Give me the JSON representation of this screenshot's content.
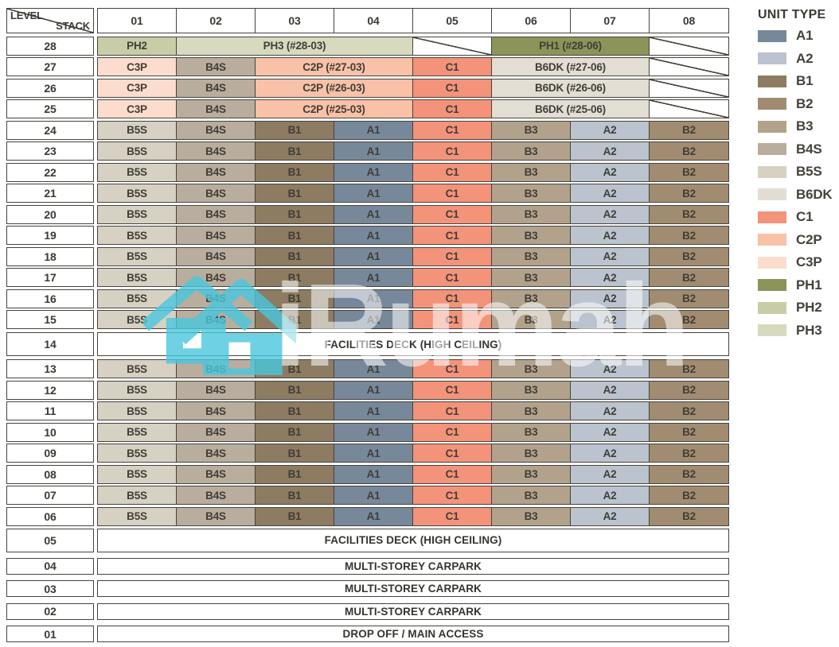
{
  "header": {
    "level_label": "LEVEL",
    "stack_label": "STACK",
    "stacks": [
      "01",
      "02",
      "03",
      "04",
      "05",
      "06",
      "07",
      "08"
    ]
  },
  "legend": {
    "title": "UNIT TYPE",
    "items": [
      "A1",
      "A2",
      "B1",
      "B2",
      "B3",
      "B4S",
      "B5S",
      "B6DK",
      "C1",
      "C2P",
      "C3P",
      "PH1",
      "PH2",
      "PH3"
    ]
  },
  "colors": {
    "A1": "#78889b",
    "A2": "#bac3ce",
    "B1": "#8d7c62",
    "B2": "#a28c71",
    "B3": "#b2a28c",
    "B4S": "#b9ad9e",
    "B5S": "#d7d1c3",
    "B6DK": "#e2ded4",
    "C1": "#f3937a",
    "C2P": "#f9c1a7",
    "C3P": "#fcdccc",
    "PH1": "#8d9459",
    "PH2": "#c8cda8",
    "PH3": "#d7dabe"
  },
  "watermark": {
    "text": "iRumah",
    "icon": "house-icon",
    "icon_color": "#4ac7de",
    "text_color": "rgba(255,255,255,0.55)"
  },
  "rows": [
    {
      "level": "28",
      "cells": [
        {
          "label": "PH2",
          "type": "PH2",
          "span": 1
        },
        {
          "label": "PH3 (#28-03)",
          "type": "PH3",
          "span": 3
        },
        {
          "label": "",
          "type": "slash",
          "span": 1
        },
        {
          "label": "PH1 (#28-06)",
          "type": "PH1",
          "span": 2
        },
        {
          "label": "",
          "type": "slash",
          "span": 1
        }
      ]
    },
    {
      "level": "27",
      "cells": [
        {
          "label": "C3P",
          "type": "C3P",
          "span": 1
        },
        {
          "label": "B4S",
          "type": "B4S",
          "span": 1
        },
        {
          "label": "C2P (#27-03)",
          "type": "C2P",
          "span": 2
        },
        {
          "label": "C1",
          "type": "C1",
          "span": 1
        },
        {
          "label": "B6DK (#27-06)",
          "type": "B6DK",
          "span": 2
        },
        {
          "label": "",
          "type": "slash",
          "span": 1
        }
      ]
    },
    {
      "level": "26",
      "cells": [
        {
          "label": "C3P",
          "type": "C3P",
          "span": 1
        },
        {
          "label": "B4S",
          "type": "B4S",
          "span": 1
        },
        {
          "label": "C2P (#26-03)",
          "type": "C2P",
          "span": 2
        },
        {
          "label": "C1",
          "type": "C1",
          "span": 1
        },
        {
          "label": "B6DK (#26-06)",
          "type": "B6DK",
          "span": 2
        },
        {
          "label": "",
          "type": "slash",
          "span": 1
        }
      ]
    },
    {
      "level": "25",
      "cells": [
        {
          "label": "C3P",
          "type": "C3P",
          "span": 1
        },
        {
          "label": "B4S",
          "type": "B4S",
          "span": 1
        },
        {
          "label": "C2P (#25-03)",
          "type": "C2P",
          "span": 2
        },
        {
          "label": "C1",
          "type": "C1",
          "span": 1
        },
        {
          "label": "B6DK (#25-06)",
          "type": "B6DK",
          "span": 2
        },
        {
          "label": "",
          "type": "slash",
          "span": 1
        }
      ]
    },
    {
      "level": "24",
      "cells": [
        {
          "label": "B5S",
          "type": "B5S",
          "span": 1
        },
        {
          "label": "B4S",
          "type": "B4S",
          "span": 1
        },
        {
          "label": "B1",
          "type": "B1",
          "span": 1
        },
        {
          "label": "A1",
          "type": "A1",
          "span": 1
        },
        {
          "label": "C1",
          "type": "C1",
          "span": 1
        },
        {
          "label": "B3",
          "type": "B3",
          "span": 1
        },
        {
          "label": "A2",
          "type": "A2",
          "span": 1
        },
        {
          "label": "B2",
          "type": "B2",
          "span": 1
        }
      ]
    },
    {
      "level": "23",
      "cells": [
        {
          "label": "B5S",
          "type": "B5S",
          "span": 1
        },
        {
          "label": "B4S",
          "type": "B4S",
          "span": 1
        },
        {
          "label": "B1",
          "type": "B1",
          "span": 1
        },
        {
          "label": "A1",
          "type": "A1",
          "span": 1
        },
        {
          "label": "C1",
          "type": "C1",
          "span": 1
        },
        {
          "label": "B3",
          "type": "B3",
          "span": 1
        },
        {
          "label": "A2",
          "type": "A2",
          "span": 1
        },
        {
          "label": "B2",
          "type": "B2",
          "span": 1
        }
      ]
    },
    {
      "level": "22",
      "cells": [
        {
          "label": "B5S",
          "type": "B5S",
          "span": 1
        },
        {
          "label": "B4S",
          "type": "B4S",
          "span": 1
        },
        {
          "label": "B1",
          "type": "B1",
          "span": 1
        },
        {
          "label": "A1",
          "type": "A1",
          "span": 1
        },
        {
          "label": "C1",
          "type": "C1",
          "span": 1
        },
        {
          "label": "B3",
          "type": "B3",
          "span": 1
        },
        {
          "label": "A2",
          "type": "A2",
          "span": 1
        },
        {
          "label": "B2",
          "type": "B2",
          "span": 1
        }
      ]
    },
    {
      "level": "21",
      "cells": [
        {
          "label": "B5S",
          "type": "B5S",
          "span": 1
        },
        {
          "label": "B4S",
          "type": "B4S",
          "span": 1
        },
        {
          "label": "B1",
          "type": "B1",
          "span": 1
        },
        {
          "label": "A1",
          "type": "A1",
          "span": 1
        },
        {
          "label": "C1",
          "type": "C1",
          "span": 1
        },
        {
          "label": "B3",
          "type": "B3",
          "span": 1
        },
        {
          "label": "A2",
          "type": "A2",
          "span": 1
        },
        {
          "label": "B2",
          "type": "B2",
          "span": 1
        }
      ]
    },
    {
      "level": "20",
      "cells": [
        {
          "label": "B5S",
          "type": "B5S",
          "span": 1
        },
        {
          "label": "B4S",
          "type": "B4S",
          "span": 1
        },
        {
          "label": "B1",
          "type": "B1",
          "span": 1
        },
        {
          "label": "A1",
          "type": "A1",
          "span": 1
        },
        {
          "label": "C1",
          "type": "C1",
          "span": 1
        },
        {
          "label": "B3",
          "type": "B3",
          "span": 1
        },
        {
          "label": "A2",
          "type": "A2",
          "span": 1
        },
        {
          "label": "B2",
          "type": "B2",
          "span": 1
        }
      ]
    },
    {
      "level": "19",
      "cells": [
        {
          "label": "B5S",
          "type": "B5S",
          "span": 1
        },
        {
          "label": "B4S",
          "type": "B4S",
          "span": 1
        },
        {
          "label": "B1",
          "type": "B1",
          "span": 1
        },
        {
          "label": "A1",
          "type": "A1",
          "span": 1
        },
        {
          "label": "C1",
          "type": "C1",
          "span": 1
        },
        {
          "label": "B3",
          "type": "B3",
          "span": 1
        },
        {
          "label": "A2",
          "type": "A2",
          "span": 1
        },
        {
          "label": "B2",
          "type": "B2",
          "span": 1
        }
      ]
    },
    {
      "level": "18",
      "cells": [
        {
          "label": "B5S",
          "type": "B5S",
          "span": 1
        },
        {
          "label": "B4S",
          "type": "B4S",
          "span": 1
        },
        {
          "label": "B1",
          "type": "B1",
          "span": 1
        },
        {
          "label": "A1",
          "type": "A1",
          "span": 1
        },
        {
          "label": "C1",
          "type": "C1",
          "span": 1
        },
        {
          "label": "B3",
          "type": "B3",
          "span": 1
        },
        {
          "label": "A2",
          "type": "A2",
          "span": 1
        },
        {
          "label": "B2",
          "type": "B2",
          "span": 1
        }
      ]
    },
    {
      "level": "17",
      "cells": [
        {
          "label": "B5S",
          "type": "B5S",
          "span": 1
        },
        {
          "label": "B4S",
          "type": "B4S",
          "span": 1
        },
        {
          "label": "B1",
          "type": "B1",
          "span": 1
        },
        {
          "label": "A1",
          "type": "A1",
          "span": 1
        },
        {
          "label": "C1",
          "type": "C1",
          "span": 1
        },
        {
          "label": "B3",
          "type": "B3",
          "span": 1
        },
        {
          "label": "A2",
          "type": "A2",
          "span": 1
        },
        {
          "label": "B2",
          "type": "B2",
          "span": 1
        }
      ]
    },
    {
      "level": "16",
      "cells": [
        {
          "label": "B5S",
          "type": "B5S",
          "span": 1
        },
        {
          "label": "B4S",
          "type": "B4S",
          "span": 1
        },
        {
          "label": "B1",
          "type": "B1",
          "span": 1
        },
        {
          "label": "A1",
          "type": "A1",
          "span": 1
        },
        {
          "label": "C1",
          "type": "C1",
          "span": 1
        },
        {
          "label": "B3",
          "type": "B3",
          "span": 1
        },
        {
          "label": "A2",
          "type": "A2",
          "span": 1
        },
        {
          "label": "B2",
          "type": "B2",
          "span": 1
        }
      ]
    },
    {
      "level": "15",
      "cells": [
        {
          "label": "B5S",
          "type": "B5S",
          "span": 1
        },
        {
          "label": "B4S",
          "type": "B4S",
          "span": 1
        },
        {
          "label": "B1",
          "type": "B1",
          "span": 1
        },
        {
          "label": "A1",
          "type": "A1",
          "span": 1
        },
        {
          "label": "C1",
          "type": "C1",
          "span": 1
        },
        {
          "label": "B3",
          "type": "B3",
          "span": 1
        },
        {
          "label": "A2",
          "type": "A2",
          "span": 1
        },
        {
          "label": "B2",
          "type": "B2",
          "span": 1
        }
      ]
    },
    {
      "level": "14",
      "cells": [
        {
          "label": "FACILITIES DECK (HIGH CEILING)",
          "type": "facility",
          "span": 8
        }
      ]
    },
    {
      "level": "13",
      "cells": [
        {
          "label": "B5S",
          "type": "B5S",
          "span": 1
        },
        {
          "label": "B4S",
          "type": "B4S",
          "span": 1
        },
        {
          "label": "B1",
          "type": "B1",
          "span": 1
        },
        {
          "label": "A1",
          "type": "A1",
          "span": 1
        },
        {
          "label": "C1",
          "type": "C1",
          "span": 1
        },
        {
          "label": "B3",
          "type": "B3",
          "span": 1
        },
        {
          "label": "A2",
          "type": "A2",
          "span": 1
        },
        {
          "label": "B2",
          "type": "B2",
          "span": 1
        }
      ]
    },
    {
      "level": "12",
      "cells": [
        {
          "label": "B5S",
          "type": "B5S",
          "span": 1
        },
        {
          "label": "B4S",
          "type": "B4S",
          "span": 1
        },
        {
          "label": "B1",
          "type": "B1",
          "span": 1
        },
        {
          "label": "A1",
          "type": "A1",
          "span": 1
        },
        {
          "label": "C1",
          "type": "C1",
          "span": 1
        },
        {
          "label": "B3",
          "type": "B3",
          "span": 1
        },
        {
          "label": "A2",
          "type": "A2",
          "span": 1
        },
        {
          "label": "B2",
          "type": "B2",
          "span": 1
        }
      ]
    },
    {
      "level": "11",
      "cells": [
        {
          "label": "B5S",
          "type": "B5S",
          "span": 1
        },
        {
          "label": "B4S",
          "type": "B4S",
          "span": 1
        },
        {
          "label": "B1",
          "type": "B1",
          "span": 1
        },
        {
          "label": "A1",
          "type": "A1",
          "span": 1
        },
        {
          "label": "C1",
          "type": "C1",
          "span": 1
        },
        {
          "label": "B3",
          "type": "B3",
          "span": 1
        },
        {
          "label": "A2",
          "type": "A2",
          "span": 1
        },
        {
          "label": "B2",
          "type": "B2",
          "span": 1
        }
      ]
    },
    {
      "level": "10",
      "cells": [
        {
          "label": "B5S",
          "type": "B5S",
          "span": 1
        },
        {
          "label": "B4S",
          "type": "B4S",
          "span": 1
        },
        {
          "label": "B1",
          "type": "B1",
          "span": 1
        },
        {
          "label": "A1",
          "type": "A1",
          "span": 1
        },
        {
          "label": "C1",
          "type": "C1",
          "span": 1
        },
        {
          "label": "B3",
          "type": "B3",
          "span": 1
        },
        {
          "label": "A2",
          "type": "A2",
          "span": 1
        },
        {
          "label": "B2",
          "type": "B2",
          "span": 1
        }
      ]
    },
    {
      "level": "09",
      "cells": [
        {
          "label": "B5S",
          "type": "B5S",
          "span": 1
        },
        {
          "label": "B4S",
          "type": "B4S",
          "span": 1
        },
        {
          "label": "B1",
          "type": "B1",
          "span": 1
        },
        {
          "label": "A1",
          "type": "A1",
          "span": 1
        },
        {
          "label": "C1",
          "type": "C1",
          "span": 1
        },
        {
          "label": "B3",
          "type": "B3",
          "span": 1
        },
        {
          "label": "A2",
          "type": "A2",
          "span": 1
        },
        {
          "label": "B2",
          "type": "B2",
          "span": 1
        }
      ]
    },
    {
      "level": "08",
      "cells": [
        {
          "label": "B5S",
          "type": "B5S",
          "span": 1
        },
        {
          "label": "B4S",
          "type": "B4S",
          "span": 1
        },
        {
          "label": "B1",
          "type": "B1",
          "span": 1
        },
        {
          "label": "A1",
          "type": "A1",
          "span": 1
        },
        {
          "label": "C1",
          "type": "C1",
          "span": 1
        },
        {
          "label": "B3",
          "type": "B3",
          "span": 1
        },
        {
          "label": "A2",
          "type": "A2",
          "span": 1
        },
        {
          "label": "B2",
          "type": "B2",
          "span": 1
        }
      ]
    },
    {
      "level": "07",
      "cells": [
        {
          "label": "B5S",
          "type": "B5S",
          "span": 1
        },
        {
          "label": "B4S",
          "type": "B4S",
          "span": 1
        },
        {
          "label": "B1",
          "type": "B1",
          "span": 1
        },
        {
          "label": "A1",
          "type": "A1",
          "span": 1
        },
        {
          "label": "C1",
          "type": "C1",
          "span": 1
        },
        {
          "label": "B3",
          "type": "B3",
          "span": 1
        },
        {
          "label": "A2",
          "type": "A2",
          "span": 1
        },
        {
          "label": "B2",
          "type": "B2",
          "span": 1
        }
      ]
    },
    {
      "level": "06",
      "cells": [
        {
          "label": "B5S",
          "type": "B5S",
          "span": 1
        },
        {
          "label": "B4S",
          "type": "B4S",
          "span": 1
        },
        {
          "label": "B1",
          "type": "B1",
          "span": 1
        },
        {
          "label": "A1",
          "type": "A1",
          "span": 1
        },
        {
          "label": "C1",
          "type": "C1",
          "span": 1
        },
        {
          "label": "B3",
          "type": "B3",
          "span": 1
        },
        {
          "label": "A2",
          "type": "A2",
          "span": 1
        },
        {
          "label": "B2",
          "type": "B2",
          "span": 1
        }
      ]
    },
    {
      "level": "05",
      "cells": [
        {
          "label": "FACILITIES DECK (HIGH CEILING)",
          "type": "facility",
          "span": 8
        }
      ]
    },
    {
      "level": "04",
      "cells": [
        {
          "label": "MULTI-STOREY CARPARK",
          "type": "facility",
          "span": 8
        }
      ]
    },
    {
      "level": "03",
      "cells": [
        {
          "label": "MULTI-STOREY CARPARK",
          "type": "facility",
          "span": 8
        }
      ]
    },
    {
      "level": "02",
      "cells": [
        {
          "label": "MULTI-STOREY CARPARK",
          "type": "facility",
          "span": 8
        }
      ]
    },
    {
      "level": "01",
      "cells": [
        {
          "label": "DROP OFF / MAIN ACCESS",
          "type": "facility",
          "span": 8
        }
      ]
    }
  ]
}
